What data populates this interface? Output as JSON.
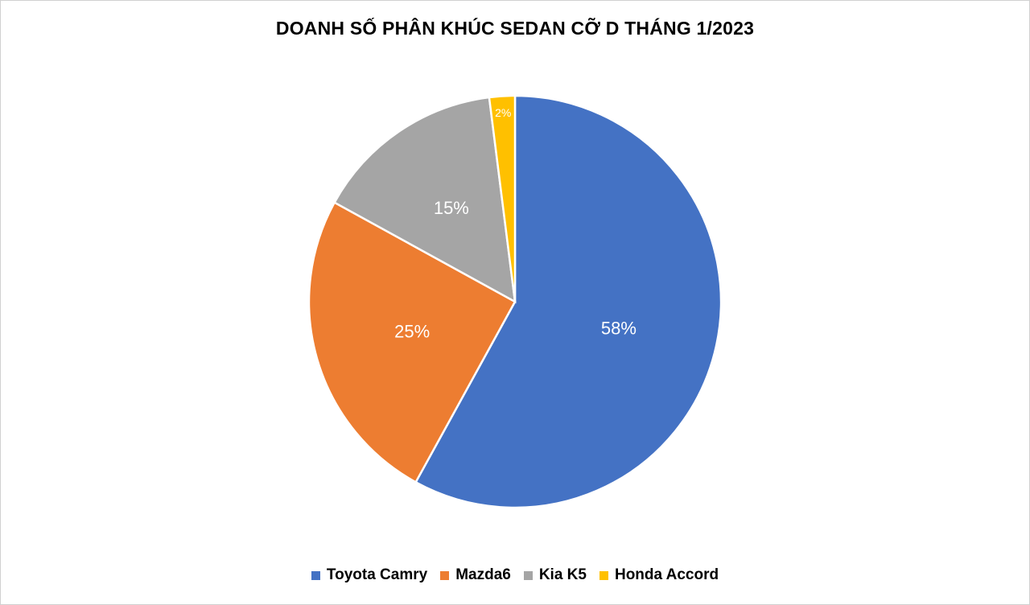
{
  "chart_data": {
    "type": "pie",
    "title": "DOANH SỐ PHÂN KHÚC SEDAN CỠ D THÁNG 1/2023",
    "categories": [
      "Toyota Camry",
      "Mazda6",
      "Kia K5",
      "Honda Accord"
    ],
    "values": [
      58,
      25,
      15,
      2
    ],
    "value_labels": [
      "58%",
      "25%",
      "15%",
      "2%"
    ],
    "colors": [
      "#4472C4",
      "#ED7D31",
      "#A5A5A5",
      "#FFC000"
    ],
    "legend_position": "bottom",
    "start_angle": "12 o'clock, clockwise"
  },
  "legend": [
    {
      "label": "Toyota Camry",
      "color": "#4472C4"
    },
    {
      "label": "Mazda6",
      "color": "#ED7D31"
    },
    {
      "label": "Kia K5",
      "color": "#A5A5A5"
    },
    {
      "label": "Honda Accord",
      "color": "#FFC000"
    }
  ]
}
